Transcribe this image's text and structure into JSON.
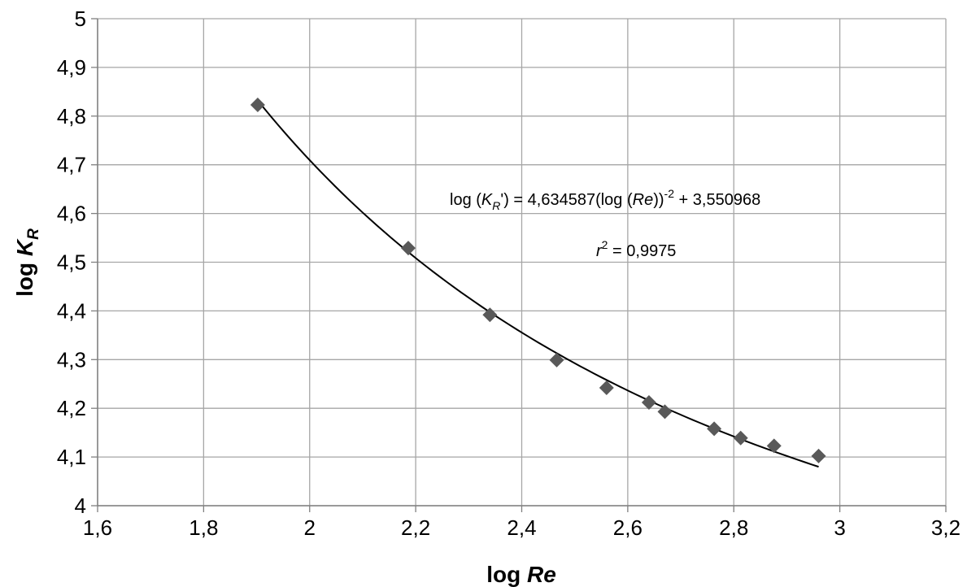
{
  "chart_data": {
    "type": "scatter",
    "title": "",
    "xlabel_text": "log ",
    "xlabel_italic": "Re",
    "ylabel_text": "log ",
    "ylabel_italic": "K",
    "ylabel_sub": "R",
    "xlim": [
      1.6,
      3.2
    ],
    "ylim": [
      4.0,
      5.0
    ],
    "xticks": [
      1.6,
      1.8,
      2.0,
      2.2,
      2.4,
      2.6,
      2.8,
      3.0,
      3.2
    ],
    "yticks": [
      4.0,
      4.1,
      4.2,
      4.3,
      4.4,
      4.5,
      4.6,
      4.7,
      4.8,
      4.9,
      5.0
    ],
    "xtick_labels": [
      "1,6",
      "1,8",
      "2",
      "2,2",
      "2,4",
      "2,6",
      "2,8",
      "3",
      "3,2"
    ],
    "ytick_labels": [
      "4",
      "4,1",
      "4,2",
      "4,3",
      "4,4",
      "4,5",
      "4,6",
      "4,7",
      "4,8",
      "4,9",
      "5"
    ],
    "grid": true,
    "marker": "diamond",
    "marker_color": "#595959",
    "line_color": "#000000",
    "grid_color": "#a6a6a6",
    "points": [
      {
        "x": 1.902,
        "y": 4.823
      },
      {
        "x": 2.186,
        "y": 4.529
      },
      {
        "x": 2.34,
        "y": 4.392
      },
      {
        "x": 2.466,
        "y": 4.299
      },
      {
        "x": 2.56,
        "y": 4.242
      },
      {
        "x": 2.64,
        "y": 4.212
      },
      {
        "x": 2.67,
        "y": 4.193
      },
      {
        "x": 2.763,
        "y": 4.158
      },
      {
        "x": 2.813,
        "y": 4.139
      },
      {
        "x": 2.876,
        "y": 4.123
      },
      {
        "x": 2.96,
        "y": 4.102
      }
    ],
    "fit": {
      "a": 4.634587,
      "b": 3.550968,
      "x_range": [
        1.902,
        2.96
      ]
    },
    "annotations": {
      "equation": {
        "p1": "log (",
        "k": "K",
        "sub": "R",
        "p2": "') = 4,634587(log (",
        "re": "Re",
        "p3": "))",
        "sup": "-2",
        "p4": " + 3,550968"
      },
      "r2": {
        "r": "r",
        "sup": "2",
        "rest": " = 0,9975"
      }
    }
  }
}
